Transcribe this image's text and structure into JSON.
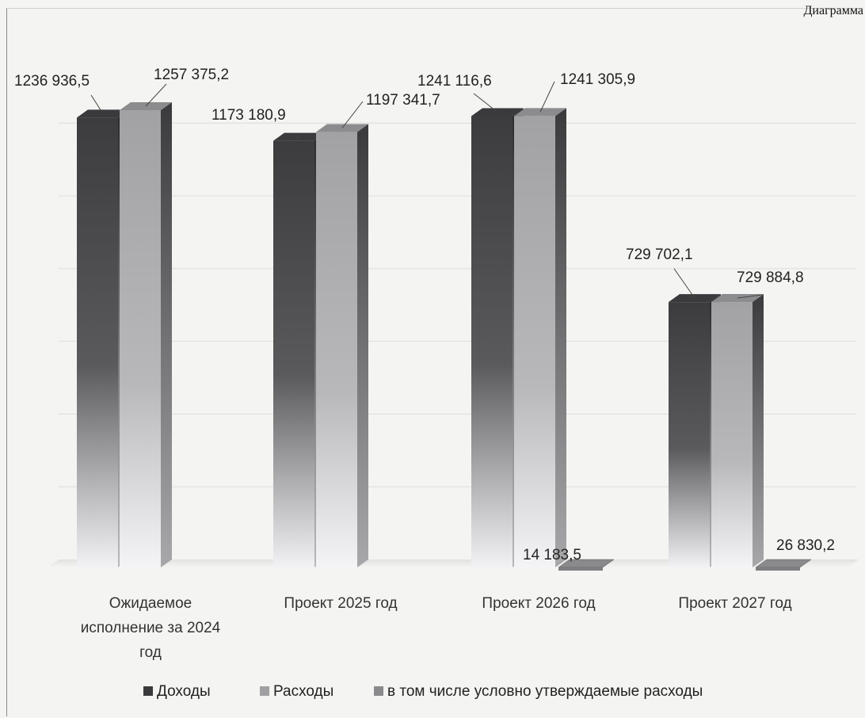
{
  "corner_label": "Диаграмма",
  "chart_data": {
    "type": "bar",
    "categories": [
      "Ожидаемое исполнение за 2024 год",
      "Проект 2025 год",
      "Проект 2026 год",
      "Проект 2027 год"
    ],
    "category_lines": [
      [
        "Ожидаемое",
        "исполнение за 2024",
        "год"
      ],
      [
        "Проект 2025 год"
      ],
      [
        "Проект 2026 год"
      ],
      [
        "Проект 2027 год"
      ]
    ],
    "series": [
      {
        "name": "Доходы",
        "values": [
          1236936.5,
          1173180.9,
          1241116.6,
          729702.1
        ],
        "labels": [
          "1236 936,5",
          "1173 180,9",
          "1241 116,6",
          "729 702,1"
        ],
        "color": "#4a4a4c"
      },
      {
        "name": "Расходы",
        "values": [
          1257375.2,
          1197341.7,
          1241305.9,
          729884.8
        ],
        "labels": [
          "1257 375,2",
          "1197 341,7",
          "1241 305,9",
          "729 884,8"
        ],
        "color": "#9c9c9e"
      },
      {
        "name": "в том числе условно утверждаемые расходы",
        "values": [
          null,
          null,
          14183.5,
          26830.2
        ],
        "labels": [
          "",
          "",
          "14 183,5",
          "26 830,2"
        ],
        "color": "#7a7a7c"
      }
    ],
    "ylim": [
      0,
      1300000
    ],
    "grid": true,
    "legend": "bottom",
    "style": "3d"
  }
}
